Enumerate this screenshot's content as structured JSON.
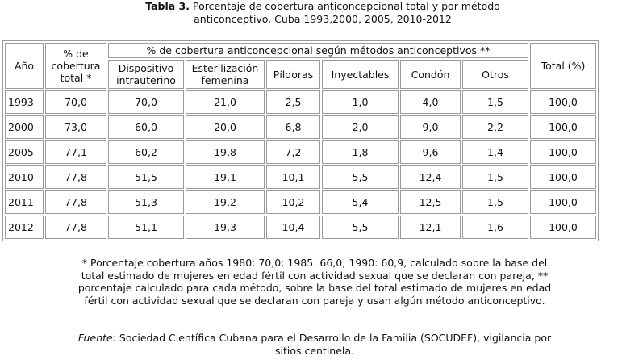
{
  "caption": {
    "label": "Tabla 3.",
    "text": "Porcentaje de cobertura anticoncepcional  total y por método anticonceptivo. Cuba 1993,2000,  2005, 2010-2012"
  },
  "table": {
    "h_year": "Año",
    "h_total_cov": "% de cobertura total *",
    "h_group": "% de cobertura anticoncepcional  según métodos  anticonceptivos  **",
    "h_total": "Total (%)",
    "methods": [
      "Dispositivo intrauterino",
      "Esterilización femenina",
      "Píldoras",
      "Inyectables",
      "Condón",
      "Otros"
    ],
    "rows": [
      {
        "year": "1993",
        "cov": "70,0",
        "vals": [
          "70,0",
          "21,0",
          "2,5",
          "1,0",
          "4,0",
          "1,5"
        ],
        "total": "100,0"
      },
      {
        "year": "2000",
        "cov": "73,0",
        "vals": [
          "60,0",
          "20,0",
          "6,8",
          "2,0",
          "9,0",
          "2,2"
        ],
        "total": "100,0"
      },
      {
        "year": "2005",
        "cov": "77,1",
        "vals": [
          "60,2",
          "19,8",
          "7,2",
          "1,8",
          "9,6",
          "1,4"
        ],
        "total": "100,0"
      },
      {
        "year": "2010",
        "cov": "77,8",
        "vals": [
          "51,5",
          "19,1",
          "10,1",
          "5,5",
          "12,4",
          "1,5"
        ],
        "total": "100,0"
      },
      {
        "year": "2011",
        "cov": "77,8",
        "vals": [
          "51,3",
          "19,2",
          "10,2",
          "5,4",
          "12,5",
          "1,5"
        ],
        "total": "100,0"
      },
      {
        "year": "2012",
        "cov": "77,8",
        "vals": [
          "51,1",
          "19,3",
          "10,4",
          "5,5",
          "12,1",
          "1,6"
        ],
        "total": "100,0"
      }
    ]
  },
  "footnote": "* Porcentaje cobertura años 1980: 70,0; 1985: 66,0; 1990: 60,9, calculado sobre la base del total estimado de mujeres en edad fértil con actividad sexual que se declaran con pareja, ** porcentaje calculado para cada método, sobre la base del total estimado de mujeres en edad fértil con actividad sexual que se declaran con pareja y usan algún método anticonceptivo.",
  "source": {
    "label": "Fuente:",
    "text": "Sociedad Científica Cubana para el Desarrollo de la Familia (SOCUDEF), vigilancia  por sitios centinela."
  }
}
